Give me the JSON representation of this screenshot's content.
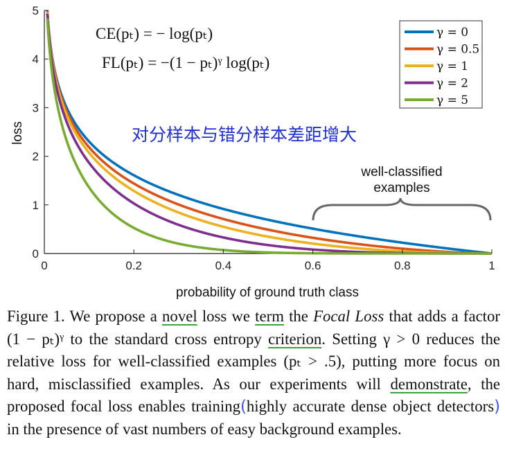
{
  "chart_data": {
    "type": "line",
    "xlabel": "probability of ground truth class",
    "ylabel": "loss",
    "xlim": [
      0,
      1
    ],
    "ylim": [
      0,
      5
    ],
    "xticks": [
      "0",
      "0.2",
      "0.4",
      "0.6",
      "0.8",
      "1"
    ],
    "yticks": [
      "0",
      "1",
      "2",
      "3",
      "4",
      "5"
    ],
    "legend_position": "top-right",
    "series": [
      {
        "name": "γ = 0",
        "gamma": 0,
        "color": "#0072bd",
        "x": [
          0.0067,
          0.02,
          0.05,
          0.1,
          0.15,
          0.2,
          0.3,
          0.4,
          0.5,
          0.6,
          0.7,
          0.8,
          0.9,
          1.0
        ],
        "y": [
          5.0,
          3.91,
          3.0,
          2.3,
          1.9,
          1.61,
          1.2,
          0.92,
          0.69,
          0.51,
          0.36,
          0.22,
          0.11,
          0.0
        ]
      },
      {
        "name": "γ = 0.5",
        "gamma": 0.5,
        "color": "#d95319",
        "x": [
          0.0067,
          0.02,
          0.05,
          0.1,
          0.15,
          0.2,
          0.3,
          0.4,
          0.5,
          0.6,
          0.7,
          0.8,
          0.9,
          1.0
        ],
        "y": [
          4.98,
          3.87,
          2.92,
          2.18,
          1.75,
          1.44,
          1.01,
          0.71,
          0.49,
          0.32,
          0.2,
          0.1,
          0.03,
          0.0
        ]
      },
      {
        "name": "γ = 1",
        "gamma": 1,
        "color": "#edb120",
        "x": [
          0.0067,
          0.02,
          0.05,
          0.1,
          0.15,
          0.2,
          0.3,
          0.4,
          0.5,
          0.6,
          0.7,
          0.8,
          0.9,
          1.0
        ],
        "y": [
          4.97,
          3.83,
          2.85,
          2.07,
          1.61,
          1.29,
          0.84,
          0.55,
          0.35,
          0.2,
          0.11,
          0.04,
          0.01,
          0.0
        ]
      },
      {
        "name": "γ = 2",
        "gamma": 2,
        "color": "#7e2f8e",
        "x": [
          0.0067,
          0.02,
          0.05,
          0.1,
          0.15,
          0.2,
          0.3,
          0.4,
          0.5,
          0.6,
          0.7,
          0.8,
          0.9,
          1.0
        ],
        "y": [
          4.93,
          3.76,
          2.71,
          1.87,
          1.37,
          1.03,
          0.59,
          0.33,
          0.17,
          0.08,
          0.03,
          0.01,
          0.0,
          0.0
        ]
      },
      {
        "name": "γ = 5",
        "gamma": 5,
        "color": "#77ac30",
        "x": [
          0.0067,
          0.02,
          0.05,
          0.1,
          0.15,
          0.2,
          0.3,
          0.4,
          0.5,
          0.6,
          0.7,
          0.8,
          0.9,
          1.0
        ],
        "y": [
          4.83,
          3.54,
          2.32,
          1.36,
          0.84,
          0.53,
          0.2,
          0.07,
          0.02,
          0.01,
          0.0,
          0.0,
          0.0,
          0.0
        ]
      }
    ],
    "annotations": {
      "formula_ce": "CE(pₜ) = − log(pₜ)",
      "formula_fl": "FL(pₜ) = −(1 − pₜ)ᵞ log(pₜ)",
      "chinese_note": "对分样本与错分样本差距增大",
      "brace_label_line1": "well-classified",
      "brace_label_line2": "examples"
    }
  },
  "caption": {
    "label": "Figure 1.",
    "s1": "We propose a",
    "w_novel": "novel",
    "s2": "loss we",
    "w_term": "term",
    "s3": "the",
    "focal_loss": "Focal Loss",
    "s4": "that adds a factor (1 − pₜ)ᵞ to the standard cross entropy",
    "w_criterion": "criterion",
    "s5": ". Setting γ > 0 reduces the relative loss for well-classified examples (pₜ > .5), putting more focus on hard, misclassified examples. As our experiments will",
    "w_demonstrate": "demonstrate",
    "s6": ", the proposed focal loss enables training",
    "paren_open": "(",
    "highlight": "highly accurate dense object detectors",
    "paren_close": ")",
    "s7": "in the presence of vast numbers of easy background examples."
  }
}
